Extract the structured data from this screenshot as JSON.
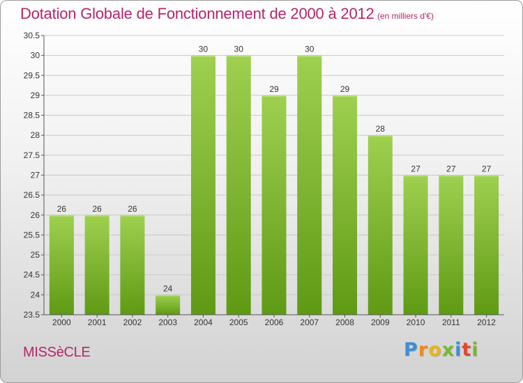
{
  "header": {
    "title": "Dotation Globale de Fonctionnement de 2000 à 2012",
    "unit": "(en milliers d'€)"
  },
  "footer": {
    "city": "MISSèCLE",
    "logo_letters": [
      {
        "char": "P",
        "color": "#3a8fd6"
      },
      {
        "char": "r",
        "color": "#f08a1c"
      },
      {
        "char": "o",
        "color": "#e8b512"
      },
      {
        "char": "x",
        "color": "#7bb82e"
      },
      {
        "char": "i",
        "color": "#3a8fd6"
      },
      {
        "char": "t",
        "color": "#e8432c"
      },
      {
        "char": "i",
        "color": "#7bb82e"
      }
    ]
  },
  "colors": {
    "title": "#b5256b",
    "bar_top": "#9fd050",
    "bar_bottom": "#5f9a14",
    "grid": "#c9c9c9",
    "axis": "#555555"
  },
  "chart_data": {
    "type": "bar",
    "title": "Dotation Globale de Fonctionnement de 2000 à 2012",
    "subtitle": "(en milliers d'€)",
    "xlabel": "",
    "ylabel": "",
    "categories": [
      "2000",
      "2001",
      "2002",
      "2003",
      "2004",
      "2005",
      "2006",
      "2007",
      "2008",
      "2009",
      "2010",
      "2011",
      "2012"
    ],
    "values": [
      26,
      26,
      26,
      24,
      30,
      30,
      29,
      30,
      29,
      28,
      27,
      27,
      27
    ],
    "data_labels": [
      "26",
      "26",
      "26",
      "24",
      "30",
      "30",
      "29",
      "30",
      "29",
      "28",
      "27",
      "27",
      "27"
    ],
    "ylim": [
      23.5,
      30.5
    ],
    "yticks": [
      23.5,
      24,
      24.5,
      25,
      25.5,
      26,
      26.5,
      27,
      27.5,
      28,
      28.5,
      29,
      29.5,
      30,
      30.5
    ],
    "ytick_labels": [
      "23.5",
      "24",
      "24.5",
      "25",
      "25.5",
      "26",
      "26.5",
      "27",
      "27.5",
      "28",
      "28.5",
      "29",
      "29.5",
      "30",
      "30.5"
    ],
    "grid": true,
    "legend": "none"
  }
}
